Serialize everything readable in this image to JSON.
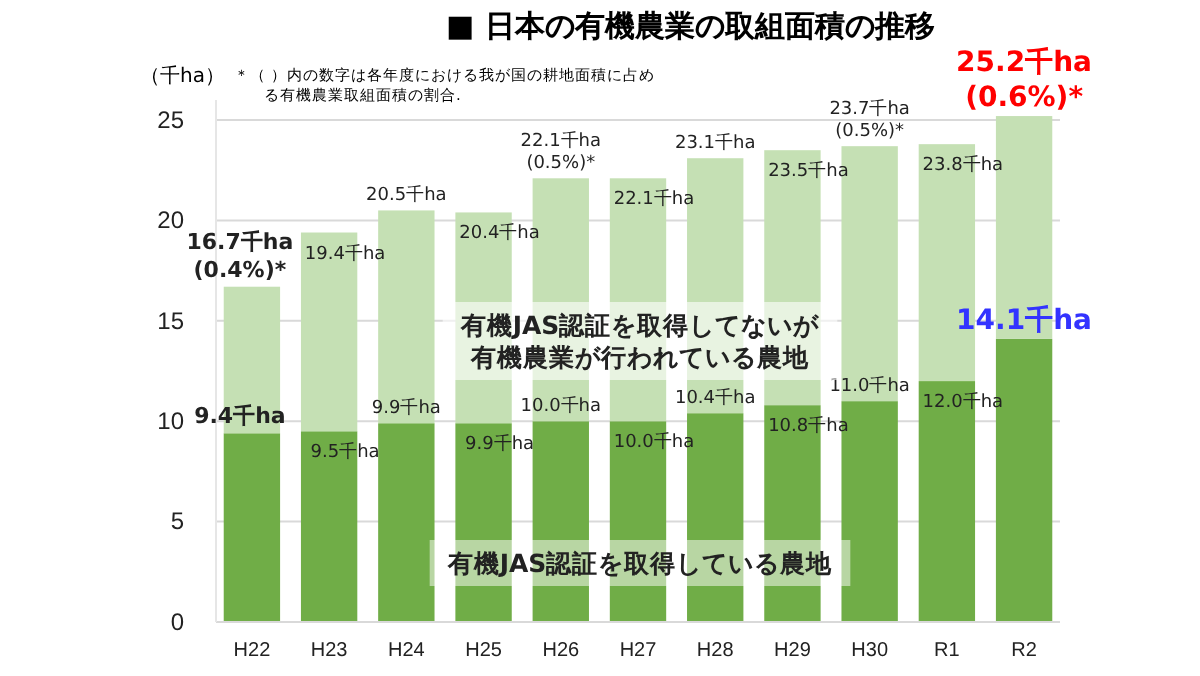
{
  "chart_data": {
    "type": "bar",
    "stacked": true,
    "title": "■  日本の有機農業の取組面積の推移",
    "ylabel": "（千ha）",
    "annotations": [
      "＊（ ）内の数字は各年度における我が国の耕地面積に占める有機農業取組面積の割合."
    ],
    "categories": [
      "H22",
      "H23",
      "H24",
      "H25",
      "H26",
      "H27",
      "H28",
      "H29",
      "H30",
      "R1",
      "R2"
    ],
    "series": [
      {
        "name": "有機JAS認証を取得している農地",
        "color": "#70ad47",
        "values": [
          9.4,
          9.5,
          9.9,
          9.9,
          10.0,
          10.0,
          10.4,
          10.8,
          11.0,
          12.0,
          14.1
        ],
        "value_labels": [
          "9.4千ha",
          "9.5千ha",
          "9.9千ha",
          "9.9千ha",
          "10.0千ha",
          "10.0千ha",
          "10.4千ha",
          "10.8千ha",
          "11.0千ha",
          "12.0千ha",
          "14.1千ha"
        ]
      },
      {
        "name": "有機JAS認証を取得してないが有機農業が行われている農地",
        "color": "#c5e0b4",
        "values": [
          7.3,
          9.9,
          10.6,
          10.5,
          12.1,
          12.1,
          12.7,
          12.7,
          12.7,
          11.8,
          11.1
        ]
      }
    ],
    "totals": [
      "16.7千ha\n(0.4%)*",
      "19.4千ha",
      "20.5千ha",
      "20.4千ha",
      "22.1千ha\n(0.5%)*",
      "22.1千ha",
      "23.1千ha",
      "23.5千ha",
      "23.7千ha\n(0.5%)*",
      "23.8千ha",
      "25.2千ha\n(0.6%)*"
    ],
    "ylim": [
      0,
      26
    ],
    "yticks": [
      0,
      5,
      10,
      15,
      20,
      25
    ],
    "grid": "y"
  }
}
